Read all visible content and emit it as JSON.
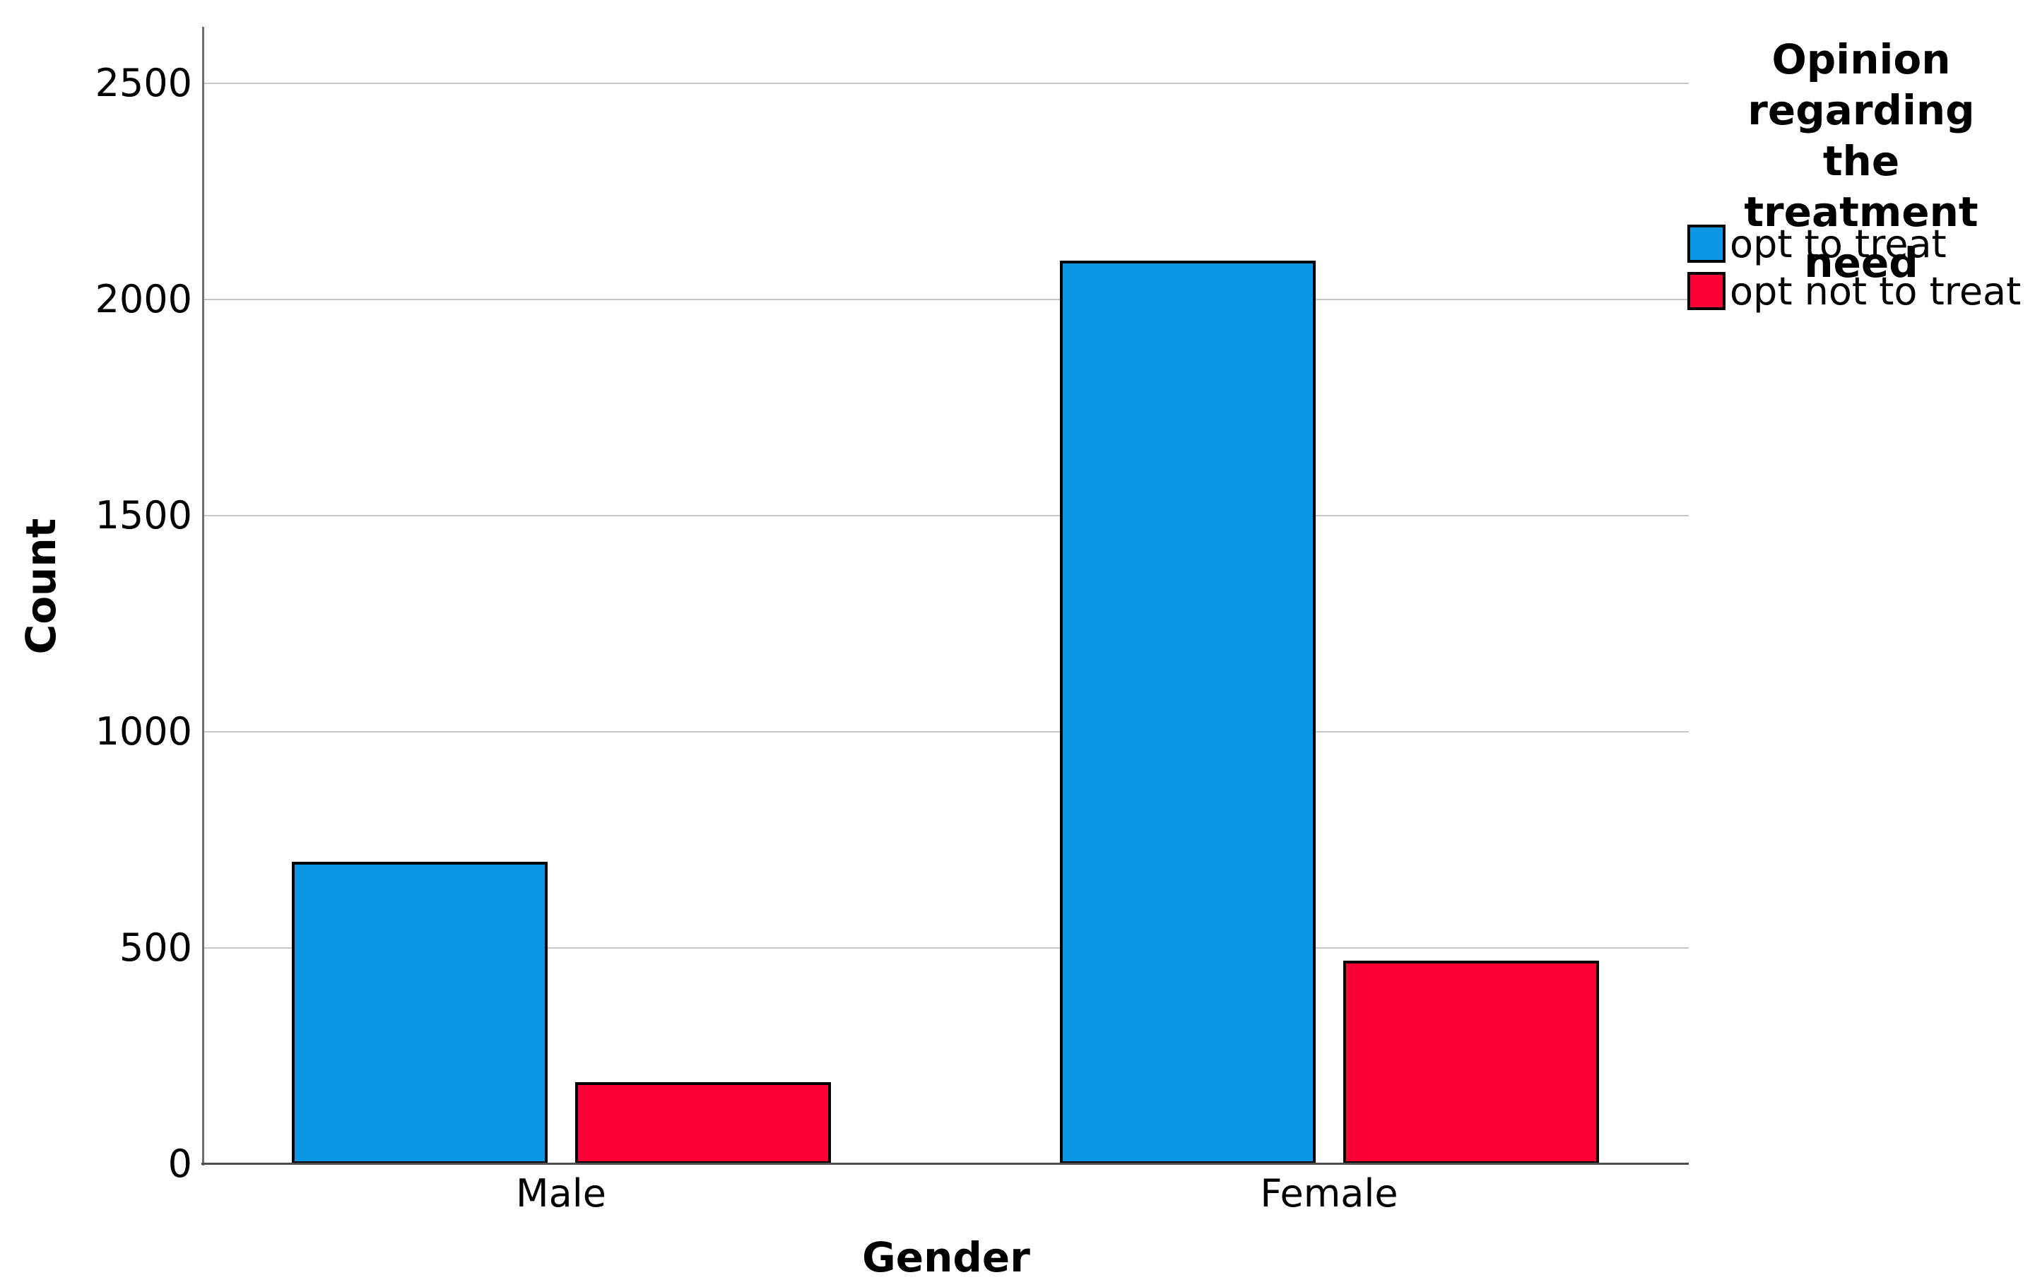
{
  "chart_data": {
    "type": "bar",
    "subtype": "clustered",
    "title": "",
    "categories": [
      "Male",
      "Female"
    ],
    "series": [
      {
        "name": "opt to treat",
        "color": "#0b97e6",
        "values": [
          700,
          2090
        ]
      },
      {
        "name": "opt not to treat",
        "color": "#fb0033",
        "values": [
          190,
          470
        ]
      }
    ],
    "xlabel": "Gender",
    "ylabel": "Count",
    "yticks": [
      0,
      500,
      1000,
      1500,
      2000,
      2500
    ],
    "ylim": [
      0,
      2630
    ],
    "grid": "horizontal",
    "legend_title": "Opinion regarding the treatment need",
    "legend_position": "top-right",
    "bar_border_color": "#000000",
    "gridline_color": "#c7c7c7",
    "axis_color": "#5a5a5a",
    "text_color": "#000000"
  }
}
